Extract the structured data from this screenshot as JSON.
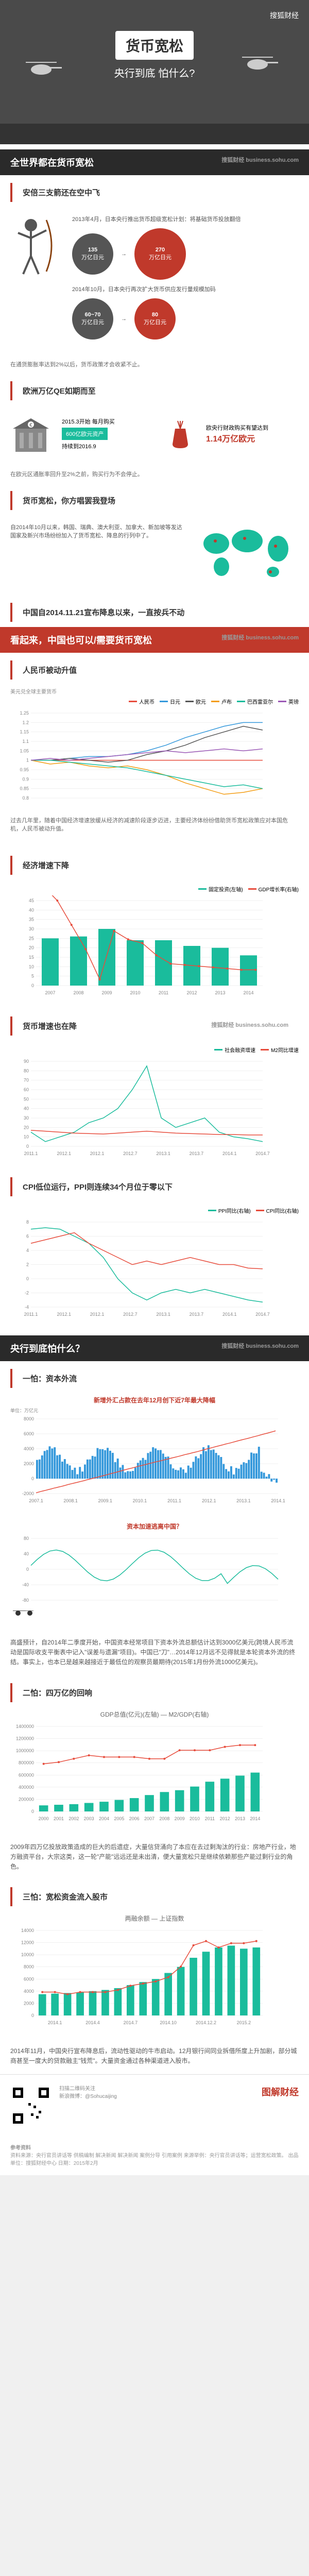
{
  "header": {
    "logo": "搜狐财经",
    "title_main": "货币宽松",
    "title_sub": "央行到底 怕什么?"
  },
  "section1": {
    "title": "全世界都在货币宽松",
    "sub_logo": "搜狐财经 business.sohu.com",
    "japan": {
      "heading": "安倍三支箭还在空中飞",
      "text1": "2013年4月，日本央行推出货币超级宽松计划：将基础货币投放翻倍",
      "circle1_val": "135",
      "circle1_unit": "万亿日元",
      "circle2_val": "270",
      "circle2_unit": "万亿日元",
      "text2": "2014年10月，日本央行再次扩大货币供应发行量规模加码",
      "circle3_val": "60~70",
      "circle3_unit": "万亿日元",
      "circle4_val": "80",
      "circle4_unit": "万亿日元",
      "footnote": "在通货膨胀率达到2%以后，货币政策才会收紧不止。"
    },
    "eu": {
      "heading": "欧洲万亿QE如期而至",
      "text1": "2015.3开始 每月购买",
      "amount1": "600亿欧元资产",
      "text2": "持续到2016.9",
      "text3": "欧央行财政购买有望达到",
      "amount2": "1.14万亿欧元",
      "footnote": "在欧元区通胀率回升至2%之前，购买行为不会停止。"
    },
    "others": {
      "heading": "货币宽松，你方唱罢我登场",
      "text": "自2014年10月以来，韩国、瑞典、澳大利亚、加拿大、新加坡等发达国家及新兴市场纷纷加入了货币宽松、降息的行列中了。"
    },
    "china": {
      "heading": "中国自2014.11.21宣布降息以来，一直按兵不动"
    }
  },
  "section2": {
    "title": "看起来，中国也可以/需要货币宽松",
    "sub_logo": "搜狐财经 business.sohu.com",
    "chart1": {
      "heading": "人民币被动升值",
      "subtitle": "美元兑全球主要货币",
      "type": "line",
      "ylim": [
        0.8,
        1.25
      ],
      "yticks": [
        0.8,
        0.85,
        0.9,
        0.95,
        1.0,
        1.05,
        1.1,
        1.15,
        1.2,
        1.25
      ],
      "x_count": 13,
      "series": [
        {
          "name": "人民币",
          "color": "#e74c3c",
          "values": [
            1.0,
            1.0,
            1.0,
            1.0,
            1.0,
            1.0,
            1.0,
            1.0,
            1.0,
            1.0,
            1.0,
            1.0,
            1.0
          ]
        },
        {
          "name": "日元",
          "color": "#3498db",
          "values": [
            1.0,
            1.0,
            1.01,
            1.02,
            1.02,
            1.03,
            1.05,
            1.08,
            1.12,
            1.15,
            1.18,
            1.2,
            1.2
          ]
        },
        {
          "name": "欧元",
          "color": "#555",
          "values": [
            1.0,
            1.0,
            1.01,
            1.0,
            0.99,
            1.0,
            1.03,
            1.05,
            1.08,
            1.12,
            1.15,
            1.18,
            1.16
          ]
        },
        {
          "name": "卢布",
          "color": "#f39c12",
          "values": [
            1.0,
            0.98,
            0.99,
            0.97,
            0.96,
            0.97,
            0.95,
            0.92,
            0.88,
            0.85,
            0.82,
            0.83,
            0.85
          ]
        },
        {
          "name": "巴西雷亚尔",
          "color": "#1abc9c",
          "values": [
            1.0,
            1.0,
            0.99,
            0.98,
            0.97,
            0.96,
            0.94,
            0.92,
            0.9,
            0.88,
            0.86,
            0.87,
            0.85
          ]
        },
        {
          "name": "英镑",
          "color": "#9b59b6",
          "values": [
            1.0,
            1.01,
            1.0,
            1.01,
            1.02,
            1.03,
            1.04,
            1.05,
            1.04,
            1.05,
            1.06,
            1.05,
            1.06
          ]
        }
      ],
      "footnote": "过去几年里，随着中国经济增速放缓从经济的减速阶段逐步迈进，主要经济体纷纷借助货币宽松政策应对本国危机，人民币被动升值。"
    },
    "chart2": {
      "heading": "经济增速下降",
      "type": "mixed",
      "y1_lim": [
        0,
        45
      ],
      "y1_ticks": [
        0,
        5,
        10,
        15,
        20,
        25,
        30,
        35,
        40,
        45
      ],
      "y2_lim": [
        6,
        13
      ],
      "xlabels": [
        "2007",
        "2008",
        "2009",
        "2010",
        "2011",
        "2012",
        "2013",
        "2014"
      ],
      "bars": {
        "name": "固定投资(左轴)",
        "color": "#1abc9c",
        "values": [
          25,
          26,
          30,
          24,
          24,
          21,
          20,
          16
        ]
      },
      "line": {
        "name": "GDP增长率(右轴)",
        "color": "#e74c3c",
        "values": [
          14.2,
          13,
          11,
          9,
          6.5,
          10.5,
          9.8,
          9.5,
          8.5,
          7.8,
          7.7,
          7.6,
          7.5,
          7.4,
          7.3,
          7.3
        ]
      },
      "line_x_count": 16
    },
    "chart3": {
      "heading": "货币增速也在降",
      "sub_logo": "搜狐财经 business.sohu.com",
      "type": "line",
      "ylim": [
        0,
        90
      ],
      "yticks": [
        0,
        10,
        20,
        30,
        40,
        50,
        60,
        70,
        80,
        90
      ],
      "xlabels": [
        "2011.1",
        "2012.1",
        "2012.1",
        "2012.7",
        "2013.1",
        "2013.7",
        "2014.1",
        "2014.7"
      ],
      "series": [
        {
          "name": "社会融资增速",
          "color": "#1abc9c",
          "values": [
            15,
            5,
            10,
            15,
            25,
            30,
            40,
            60,
            85,
            30,
            20,
            25,
            30,
            15,
            10,
            8,
            5
          ]
        },
        {
          "name": "M2同比增速",
          "color": "#e74c3c",
          "values": [
            17,
            16,
            15,
            14,
            13.5,
            13,
            14,
            15,
            16,
            15,
            14,
            13.5,
            13,
            12.5,
            12.5,
            12,
            12
          ]
        }
      ],
      "x_count": 17
    },
    "chart4": {
      "heading": "CPI低位运行，PPI则连续34个月位于零以下",
      "type": "line",
      "ylim": [
        -4,
        8
      ],
      "yticks": [
        -4,
        -2,
        0,
        2,
        4,
        6,
        8
      ],
      "xlabels": [
        "2011.1",
        "2012.1",
        "2012.1",
        "2012.7",
        "2013.1",
        "2013.7",
        "2014.1",
        "2014.7"
      ],
      "series": [
        {
          "name": "PPI同比(右轴)",
          "color": "#1abc9c",
          "values": [
            7,
            7.2,
            7,
            6,
            5,
            3,
            0,
            -2,
            -3,
            -2,
            -1.5,
            -2,
            -1.5,
            -2,
            -2.5,
            -3,
            -3.3
          ]
        },
        {
          "name": "CPI同比(右轴)",
          "color": "#e74c3c",
          "values": [
            5,
            5.5,
            6,
            6.5,
            5,
            4,
            3,
            2,
            2.5,
            2,
            2.5,
            3,
            2.5,
            2,
            2,
            1.5,
            1.4
          ]
        }
      ],
      "x_count": 17
    }
  },
  "section3": {
    "title": "央行到底怕什么？",
    "sub_logo": "搜狐财经 business.sohu.com",
    "fear1": {
      "heading": "一怕：资本外流",
      "chart1": {
        "title": "新增外汇占款在去年12月创下近7年最大降幅",
        "type": "line_bar",
        "y1_lim": [
          -2000,
          8000
        ],
        "y1_ticks": [
          -2000,
          0,
          2000,
          4000,
          6000,
          8000
        ],
        "y1_unit": "单位：万亿元",
        "xlabels": [
          "2007.1",
          "2008.1",
          "2009.1",
          "2010.1",
          "2011.1",
          "2012.1",
          "2013.1",
          "2014.1"
        ],
        "bars": {
          "color": "#3498db"
        },
        "line": {
          "color": "#e74c3c"
        }
      },
      "chart2": {
        "title": "资本加速逃离中国？",
        "type": "line",
        "ylim": [
          -80,
          80
        ],
        "yticks": [
          -80,
          -40,
          0,
          40,
          80
        ],
        "series": [
          {
            "color": "#1abc9c"
          }
        ]
      },
      "text": "高盛预计，自2014年二季度开始，中国资本经常项目下资本外流总额估计达到3000亿美元(跨境人民币流动是国际收支平衡表中记入\"误差与遗漏\"项目)。中国已\"刀\"…2014年12月远不见得就是本轮资本外流的终结。事实上，也本已是越来越接近于最低位的观察员最期待(2015年1月份外流1000亿美元)。"
    },
    "fear2": {
      "heading": "二怕：四万亿的回响",
      "chart": {
        "title": "GDP总值(亿元)(左轴) — M2/GDP(右轴)",
        "type": "line_bar",
        "xlabels": [
          "2000",
          "2001",
          "2002",
          "2003",
          "2004",
          "2005",
          "2006",
          "2007",
          "2008",
          "2009",
          "2010",
          "2011",
          "2012",
          "2013",
          "2014"
        ],
        "y1_lim": [
          0,
          1400000
        ],
        "y2_lim": [
          0,
          250
        ],
        "bars": {
          "color": "#1abc9c",
          "values": [
            100000,
            110000,
            120000,
            140000,
            160000,
            190000,
            220000,
            270000,
            320000,
            350000,
            410000,
            490000,
            540000,
            590000,
            640000
          ]
        },
        "line": {
          "color": "#e74c3c",
          "values": [
            140,
            145,
            155,
            165,
            160,
            160,
            160,
            155,
            155,
            180,
            180,
            180,
            190,
            195,
            195
          ]
        }
      },
      "text": "2009年四万亿投放政策造成的巨大的后遗症，大量信贷涌向了本应在去过剩淘汰的行业：房地产行业，地方融资平台，大宗这类，这一轮\"产能\"远远还是未出清，便大量宽松只是继续依赖那些产能过剩行业的角色。"
    },
    "fear3": {
      "heading": "三怕：宽松资金流入股市",
      "chart": {
        "title": "两融余额 — 上证指数",
        "type": "line_bar",
        "xlabels": [
          "2014.1",
          "2014.4",
          "2014.7",
          "2014.10",
          "2014.12.2",
          "2015.2"
        ],
        "y1_lim": [
          0,
          14000
        ],
        "y1_ticks": [
          0,
          2000,
          4000,
          6000,
          8000,
          10000,
          12000,
          14000
        ],
        "y2_lim": [
          1500,
          3500
        ],
        "bars": {
          "color": "#1abc9c",
          "values": [
            3500,
            3600,
            3700,
            3800,
            4000,
            4200,
            4500,
            5000,
            5500,
            6000,
            7000,
            8000,
            9500,
            10500,
            11200,
            11500,
            11000,
            11200
          ]
        },
        "line": {
          "color": "#e74c3c",
          "values": [
            2050,
            2050,
            2000,
            2050,
            2050,
            2050,
            2100,
            2200,
            2250,
            2300,
            2400,
            2650,
            3150,
            3250,
            3100,
            3200,
            3200,
            3250
          ]
        },
        "x_count": 18
      },
      "text": "2014年11月，中国央行宣布降息后，流动性驱动的牛市启动。12月银行间同业拆借所度上升加剧，部分城商甚至一度大的贷款融主\"钱荒\"。大量资金通过各种渠道进入股市。"
    }
  },
  "footer": {
    "scan_text": "扫描二维码关注",
    "weibo": "新浪微博：@Sohucaijing",
    "brand": "图解财经",
    "ref_title": "参考资料",
    "refs": "资料来源：央行官员讲话等  供稿编制  解决新闻  解决新闻  案例分导  引用案例\n来源举例：央行官员讲话等；运营宽松政策。\n出品单位：搜狐财经中心 日期：2015年2月"
  },
  "colors": {
    "red": "#c0392b",
    "dark": "#2a2a2a",
    "teal": "#1abc9c",
    "blue": "#3498db",
    "grid": "#e0e0e0"
  }
}
